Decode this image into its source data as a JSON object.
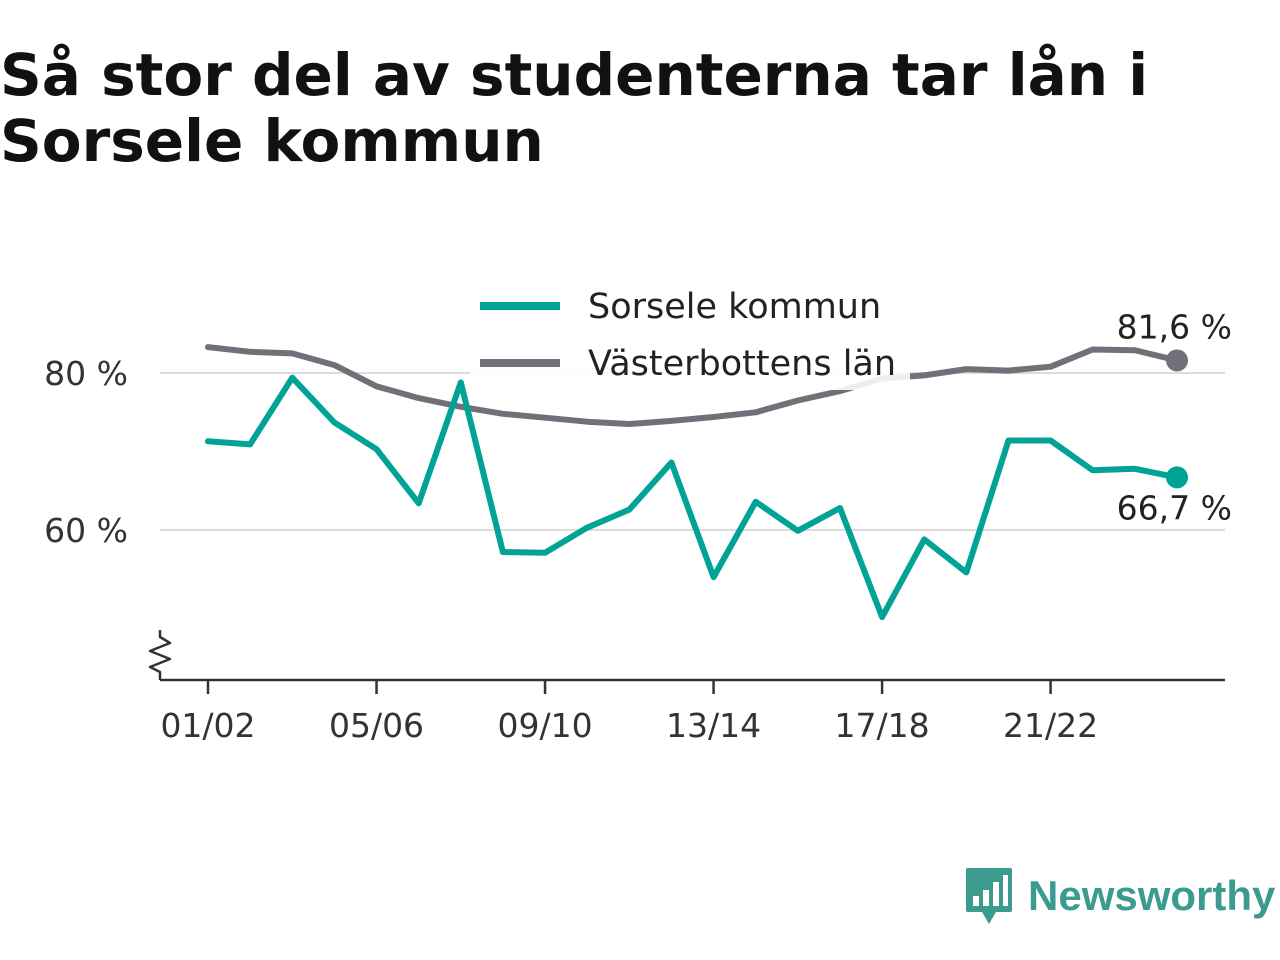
{
  "chart_data": {
    "type": "line",
    "title": "Så stor del av studenterna tar lån i Sorsele kommun",
    "xlabel": "",
    "ylabel": "",
    "x": [
      "01/02",
      "02/03",
      "03/04",
      "04/05",
      "05/06",
      "06/07",
      "07/08",
      "08/09",
      "09/10",
      "10/11",
      "11/12",
      "12/13",
      "13/14",
      "14/15",
      "15/16",
      "16/17",
      "17/18",
      "18/19",
      "19/20",
      "20/21",
      "21/22",
      "22/23",
      "23/24",
      "24/25"
    ],
    "x_tick_labels": [
      "01/02",
      "05/06",
      "09/10",
      "13/14",
      "17/18",
      "21/22"
    ],
    "y_ticks": [
      60,
      80
    ],
    "y_tick_labels": [
      "60 %",
      "80 %"
    ],
    "ylim": [
      47,
      87
    ],
    "grid": true,
    "legend_position": "top-center",
    "series": [
      {
        "name": "Sorsele kommun",
        "color": "#00a396",
        "values": [
          71.3,
          70.9,
          79.4,
          73.7,
          70.3,
          63.4,
          78.8,
          57.2,
          57.1,
          60.3,
          62.6,
          68.6,
          54.0,
          63.6,
          59.9,
          62.8,
          48.9,
          58.8,
          54.6,
          71.4,
          71.4,
          67.6,
          67.8,
          66.7
        ],
        "end_label": "66,7 %"
      },
      {
        "name": "Västerbottens län",
        "color": "#707078",
        "values": [
          83.3,
          82.7,
          82.5,
          81.0,
          78.3,
          76.8,
          75.7,
          74.8,
          74.3,
          73.8,
          73.5,
          73.9,
          74.4,
          75.0,
          76.5,
          77.7,
          79.3,
          79.7,
          80.5,
          80.3,
          80.8,
          83.0,
          82.9,
          81.6
        ],
        "end_label": "81,6 %"
      }
    ]
  },
  "logo": {
    "text": "Newsworthy",
    "color": "#3a9b8e"
  }
}
